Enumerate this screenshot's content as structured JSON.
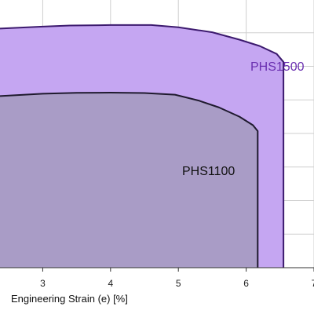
{
  "chart_data": {
    "type": "area",
    "xlabel": "Engineering Strain (e) [%]",
    "ylabel": "",
    "xlim": [
      2.37,
      7
    ],
    "ylim": [
      0,
      1600
    ],
    "x_ticks": [
      3,
      4,
      5,
      6,
      7
    ],
    "y_gridlines": [
      200,
      400,
      600,
      800,
      1000,
      1200,
      1400
    ],
    "grid": true,
    "series": [
      {
        "name": "PHS1500",
        "fill_color": "#c5a6f2",
        "line_color": "#3c1a6e",
        "label_color": "#6a2fb0",
        "points": [
          {
            "x": 2.37,
            "y": 1425
          },
          {
            "x": 3.0,
            "y": 1437
          },
          {
            "x": 3.4,
            "y": 1443
          },
          {
            "x": 4.0,
            "y": 1446
          },
          {
            "x": 4.6,
            "y": 1446
          },
          {
            "x": 5.0,
            "y": 1433
          },
          {
            "x": 5.5,
            "y": 1403
          },
          {
            "x": 5.9,
            "y": 1359
          },
          {
            "x": 6.2,
            "y": 1321
          },
          {
            "x": 6.45,
            "y": 1274
          },
          {
            "x": 6.55,
            "y": 1226
          },
          {
            "x": 6.55,
            "y": 0
          }
        ]
      },
      {
        "name": "PHS1100",
        "fill_color": "#a99cc6",
        "line_color": "#1f1a2e",
        "label_color": "#111111",
        "points": [
          {
            "x": 2.37,
            "y": 1023
          },
          {
            "x": 3.0,
            "y": 1037
          },
          {
            "x": 3.5,
            "y": 1042
          },
          {
            "x": 4.0,
            "y": 1043
          },
          {
            "x": 4.5,
            "y": 1041
          },
          {
            "x": 4.95,
            "y": 1031
          },
          {
            "x": 5.3,
            "y": 996
          },
          {
            "x": 5.6,
            "y": 955
          },
          {
            "x": 5.9,
            "y": 900
          },
          {
            "x": 6.1,
            "y": 849
          },
          {
            "x": 6.17,
            "y": 814
          },
          {
            "x": 6.17,
            "y": 0
          }
        ]
      }
    ]
  }
}
